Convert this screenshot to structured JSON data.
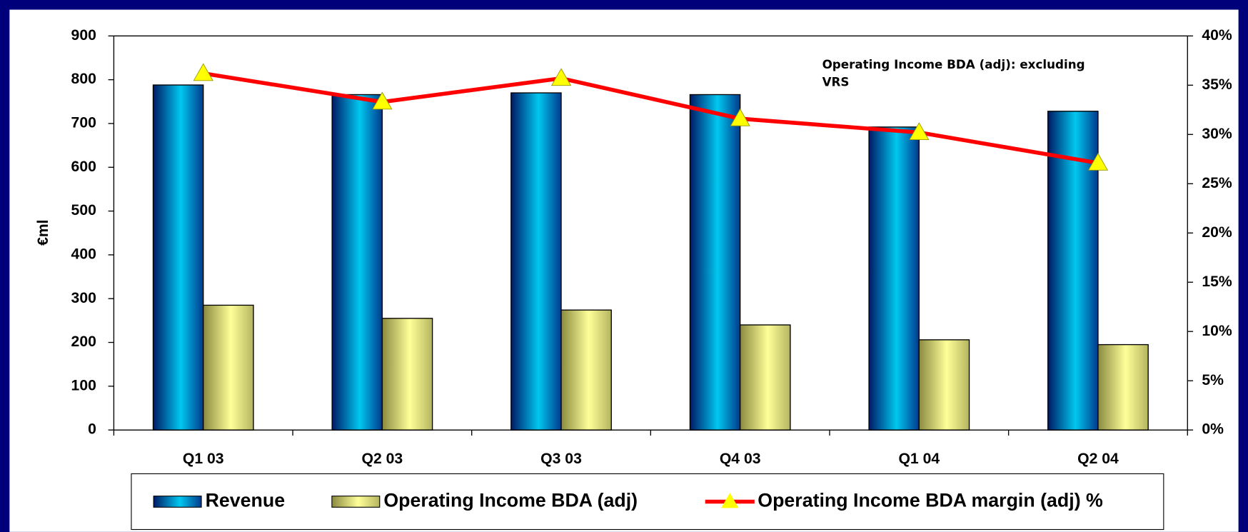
{
  "chart_data": {
    "type": "bar_line",
    "y_label": "€ml",
    "annotation": "Operating Income BDA (adj): excluding VRS",
    "categories": [
      "Q1 03",
      "Q2 03",
      "Q3 03",
      "Q4 03",
      "Q1 04",
      "Q2 04"
    ],
    "series": [
      {
        "name": "Revenue",
        "type": "bar",
        "color": "#00c8f0",
        "values": [
          788,
          766,
          770,
          766,
          692,
          728
        ]
      },
      {
        "name": "Operating Income BDA (adj)",
        "type": "bar",
        "color": "#ffff99",
        "values": [
          285,
          255,
          274,
          240,
          206,
          195
        ]
      },
      {
        "name": "Operating Income BDA margin (adj) %",
        "type": "line",
        "axis": "y2",
        "color": "#ff0000",
        "marker_color": "#ffff00",
        "values": [
          36.2,
          33.3,
          35.7,
          31.6,
          30.2,
          27.1
        ]
      }
    ],
    "ylim": [
      0,
      900
    ],
    "yticks": [
      0,
      100,
      200,
      300,
      400,
      500,
      600,
      700,
      800,
      900
    ],
    "y2lim": [
      0,
      40
    ],
    "y2ticks": [
      {
        "value": 0,
        "label": "0%"
      },
      {
        "value": 5,
        "label": "5%"
      },
      {
        "value": 10,
        "label": "10%"
      },
      {
        "value": 15,
        "label": "15%"
      },
      {
        "value": 20,
        "label": "20%"
      },
      {
        "value": 25,
        "label": "25%"
      },
      {
        "value": 30,
        "label": "30%"
      },
      {
        "value": 35,
        "label": "35%"
      },
      {
        "value": 40,
        "label": "40%"
      }
    ],
    "grid": false,
    "legend": "bottom"
  }
}
